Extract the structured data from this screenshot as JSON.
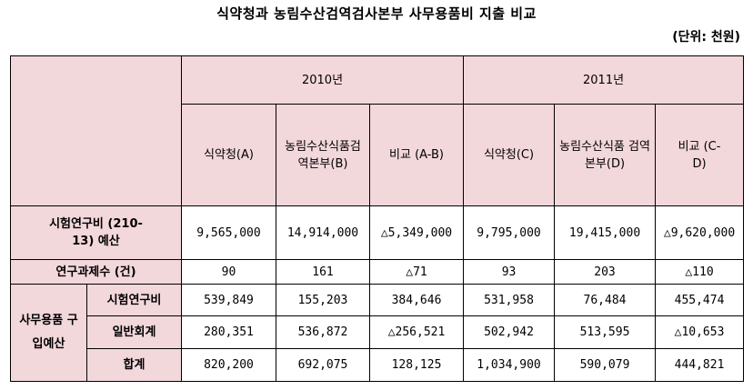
{
  "title": "식약청과 농림수산검역검사본부 사무용품비 지출 비교",
  "unit": "(단위: 천원)",
  "header": {
    "year1": "2010년",
    "year2": "2011년",
    "cols": [
      "식약청(A)",
      "농림수산식품검역본부(B)",
      "비교 (A-B)",
      "식약청(C)",
      "농림수산식품 검역본부(D)",
      "비교 (C-D)"
    ]
  },
  "rows": {
    "research": {
      "label": "시험연구비 (210-13) 예산",
      "values": [
        "9,565,000",
        "14,914,000",
        "△5,349,000",
        "9,795,000",
        "19,415,000",
        "△9,620,000"
      ]
    },
    "projects": {
      "label": "연구과제수 (건)",
      "values": [
        "90",
        "161",
        "△71",
        "93",
        "203",
        "△110"
      ]
    },
    "group_label": "사무용품 구입예산",
    "sub": [
      {
        "label": "시험연구비",
        "values": [
          "539,849",
          "155,203",
          "384,646",
          "531,958",
          "76,484",
          "455,474"
        ]
      },
      {
        "label": "일반회계",
        "values": [
          "280,351",
          "536,872",
          "△256,521",
          "502,942",
          "513,595",
          "△10,653"
        ]
      },
      {
        "label": "합계",
        "values": [
          "820,200",
          "692,075",
          "128,125",
          "1,034,900",
          "590,079",
          "444,821"
        ]
      }
    ]
  }
}
